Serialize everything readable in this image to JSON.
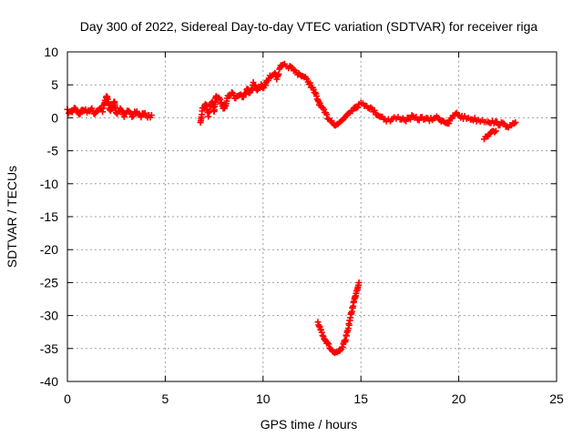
{
  "chart_data": {
    "type": "scatter",
    "title": "Day 300 of 2022, Sidereal Day-to-day VTEC variation (SDTVAR) for receiver riga",
    "xlabel": "GPS time / hours",
    "ylabel": "SDTVAR / TECUs",
    "xlim": [
      0,
      25
    ],
    "ylim": [
      -40,
      10
    ],
    "xticks": [
      0,
      5,
      10,
      15,
      20,
      25
    ],
    "yticks": [
      10,
      5,
      0,
      -5,
      -10,
      -15,
      -20,
      -25,
      -30,
      -35,
      -40
    ],
    "xtick_labels": [
      "0",
      "5",
      "10",
      "15",
      "20",
      "25"
    ],
    "ytick_labels": [
      "10",
      "5",
      "0",
      "-5",
      "-10",
      "-15",
      "-20",
      "-25",
      "-30",
      "-35",
      "-40"
    ],
    "grid": true,
    "marker": "plus",
    "color": "#ff0000",
    "series": [
      {
        "name": "SDTVAR riga",
        "segments": [
          [
            [
              0.0,
              1.0
            ],
            [
              0.2,
              0.8
            ],
            [
              0.4,
              1.6
            ],
            [
              0.6,
              0.6
            ],
            [
              0.8,
              1.3
            ],
            [
              1.0,
              0.9
            ],
            [
              1.2,
              1.4
            ],
            [
              1.4,
              0.7
            ],
            [
              1.6,
              1.5
            ],
            [
              1.8,
              1.1
            ],
            [
              2.0,
              3.4
            ],
            [
              2.1,
              2.2
            ],
            [
              2.2,
              1.0
            ],
            [
              2.4,
              2.4
            ],
            [
              2.5,
              0.6
            ],
            [
              2.7,
              1.5
            ],
            [
              2.9,
              0.4
            ],
            [
              3.1,
              1.1
            ],
            [
              3.3,
              0.3
            ],
            [
              3.5,
              0.9
            ],
            [
              3.7,
              0.2
            ],
            [
              3.9,
              0.7
            ],
            [
              4.1,
              0.1
            ],
            [
              4.3,
              0.4
            ]
          ],
          [
            [
              6.8,
              -0.5
            ],
            [
              6.9,
              1.2
            ],
            [
              7.1,
              2.0
            ],
            [
              7.2,
              0.4
            ],
            [
              7.4,
              2.5
            ],
            [
              7.5,
              1.0
            ],
            [
              7.6,
              3.4
            ],
            [
              7.8,
              2.6
            ],
            [
              8.0,
              1.4
            ],
            [
              8.2,
              3.2
            ],
            [
              8.4,
              3.8
            ],
            [
              8.6,
              3.0
            ],
            [
              8.8,
              3.6
            ],
            [
              9.0,
              3.1
            ],
            [
              9.2,
              4.6
            ],
            [
              9.3,
              3.6
            ],
            [
              9.5,
              5.2
            ],
            [
              9.7,
              4.2
            ],
            [
              9.9,
              5.0
            ],
            [
              10.0,
              4.4
            ],
            [
              10.2,
              5.5
            ],
            [
              10.4,
              6.4
            ],
            [
              10.6,
              7.0
            ],
            [
              10.7,
              6.0
            ],
            [
              10.9,
              7.7
            ],
            [
              11.1,
              7.9
            ],
            [
              11.3,
              7.8
            ],
            [
              11.5,
              7.4
            ],
            [
              11.7,
              6.9
            ],
            [
              11.9,
              6.6
            ],
            [
              12.1,
              6.1
            ],
            [
              12.3,
              5.6
            ],
            [
              12.5,
              4.6
            ],
            [
              12.7,
              3.4
            ],
            [
              12.9,
              2.0
            ],
            [
              13.1,
              1.0
            ],
            [
              13.3,
              0.1
            ],
            [
              13.5,
              -0.5
            ],
            [
              13.7,
              -1.0
            ],
            [
              13.9,
              -0.8
            ],
            [
              14.1,
              -0.2
            ],
            [
              14.3,
              0.6
            ],
            [
              14.5,
              1.2
            ],
            [
              14.7,
              1.6
            ],
            [
              14.9,
              2.0
            ],
            [
              15.1,
              2.1
            ],
            [
              15.3,
              1.9
            ],
            [
              15.5,
              1.4
            ],
            [
              15.7,
              0.9
            ],
            [
              15.9,
              0.4
            ],
            [
              16.1,
              0.1
            ],
            [
              16.3,
              -0.3
            ],
            [
              16.5,
              -0.4
            ],
            [
              16.7,
              -0.1
            ],
            [
              17.0,
              0.0
            ],
            [
              17.3,
              -0.3
            ],
            [
              17.6,
              0.1
            ],
            [
              17.9,
              -0.2
            ],
            [
              18.2,
              0.0
            ],
            [
              18.5,
              -0.4
            ],
            [
              18.8,
              0.1
            ],
            [
              19.1,
              -0.3
            ],
            [
              19.3,
              -0.6
            ],
            [
              19.5,
              -0.8
            ],
            [
              19.7,
              0.2
            ],
            [
              19.9,
              0.6
            ],
            [
              20.1,
              0.2
            ],
            [
              20.3,
              0.0
            ],
            [
              20.6,
              -0.1
            ],
            [
              20.9,
              -0.3
            ],
            [
              21.2,
              -0.4
            ],
            [
              21.5,
              -0.5
            ],
            [
              21.8,
              -0.7
            ],
            [
              22.1,
              -0.9
            ],
            [
              22.4,
              -1.1
            ],
            [
              22.7,
              -1.3
            ],
            [
              22.9,
              -0.7
            ]
          ],
          [
            [
              21.3,
              -3.2
            ],
            [
              21.5,
              -2.8
            ],
            [
              21.7,
              -2.3
            ],
            [
              21.9,
              -2.0
            ]
          ],
          [
            [
              12.8,
              -31.0
            ],
            [
              13.0,
              -32.5
            ],
            [
              13.2,
              -33.8
            ],
            [
              13.4,
              -34.8
            ],
            [
              13.6,
              -35.6
            ],
            [
              13.8,
              -35.8
            ],
            [
              14.0,
              -35.2
            ],
            [
              14.2,
              -33.8
            ],
            [
              14.4,
              -31.2
            ],
            [
              14.6,
              -28.4
            ],
            [
              14.8,
              -26.0
            ],
            [
              14.9,
              -25.0
            ]
          ]
        ]
      }
    ]
  }
}
